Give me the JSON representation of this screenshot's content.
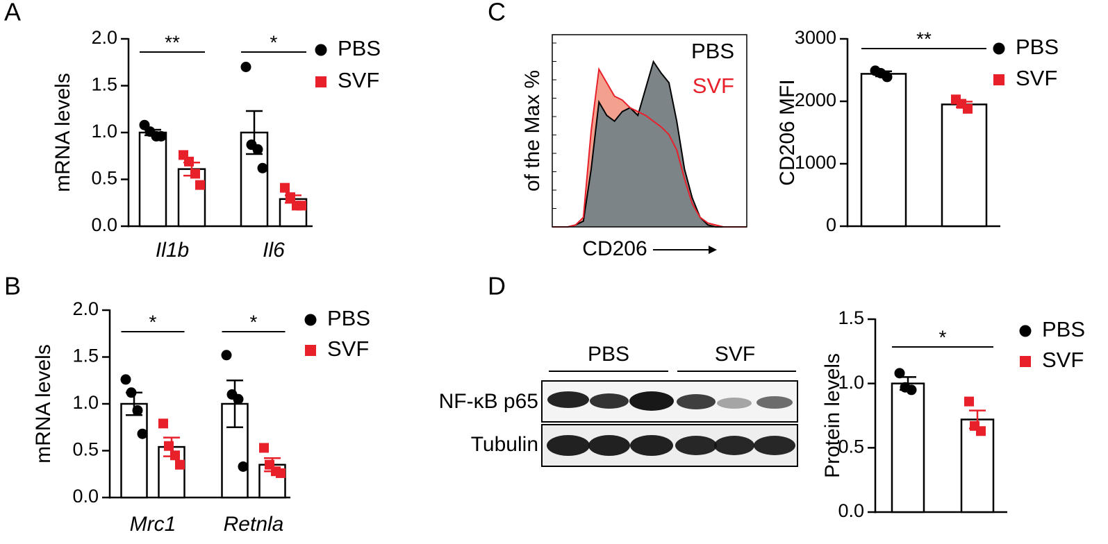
{
  "panel_labels": [
    "A",
    "B",
    "C",
    "D"
  ],
  "chart_data": [
    {
      "type": "bar_dot",
      "ylabel": "mRNA levels",
      "categories": [
        "Il1b",
        "Il6"
      ],
      "ylim": [
        0,
        2
      ],
      "yticks": [
        {
          "value": 0,
          "label": "0.0"
        },
        {
          "value": 0.5,
          "label": "0.5"
        },
        {
          "value": 1,
          "label": "1.0"
        },
        {
          "value": 1.5,
          "label": "1.5"
        },
        {
          "value": 2,
          "label": "2.0"
        }
      ],
      "annotations": [
        "**",
        "*"
      ],
      "series": [
        {
          "name": "PBS",
          "color": "#000000",
          "marker": "circle",
          "values": [
            1.0,
            1.0
          ],
          "errors": [
            0.03,
            0.23
          ],
          "points": [
            [
              1.08,
              1.01,
              0.96,
              0.96
            ],
            [
              1.7,
              0.87,
              0.82,
              0.62
            ]
          ]
        },
        {
          "name": "SVF",
          "color": "#e8202a",
          "marker": "square",
          "values": [
            0.61,
            0.29
          ],
          "errors": [
            0.07,
            0.04
          ],
          "points": [
            [
              0.76,
              0.69,
              0.56,
              0.44
            ],
            [
              0.41,
              0.31,
              0.22,
              0.22
            ]
          ]
        }
      ]
    },
    {
      "type": "bar_dot",
      "ylabel": "mRNA levels",
      "categories": [
        "Mrc1",
        "Retnla"
      ],
      "ylim": [
        0,
        2
      ],
      "yticks": [
        {
          "value": 0,
          "label": "0.0"
        },
        {
          "value": 0.5,
          "label": "0.5"
        },
        {
          "value": 1,
          "label": "1.0"
        },
        {
          "value": 1.5,
          "label": "1.5"
        },
        {
          "value": 2,
          "label": "2.0"
        }
      ],
      "annotations": [
        "*",
        "*"
      ],
      "series": [
        {
          "name": "PBS",
          "color": "#000000",
          "marker": "circle",
          "values": [
            1.0,
            1.0
          ],
          "errors": [
            0.12,
            0.25
          ],
          "points": [
            [
              1.26,
              1.12,
              0.93,
              0.68
            ],
            [
              1.52,
              1.1,
              1.05,
              0.33
            ]
          ]
        },
        {
          "name": "SVF",
          "color": "#e8202a",
          "marker": "square",
          "values": [
            0.54,
            0.35
          ],
          "errors": [
            0.1,
            0.07
          ],
          "points": [
            [
              0.79,
              0.55,
              0.45,
              0.35
            ],
            [
              0.53,
              0.35,
              0.28,
              0.26
            ]
          ]
        }
      ]
    },
    {
      "type": "area",
      "ylabel": "of the Max %",
      "xlabel": "CD206",
      "x": [
        0,
        1,
        2,
        3,
        4,
        5,
        6,
        7,
        8,
        9,
        10,
        11,
        12,
        13,
        14,
        15,
        16,
        17,
        18,
        19,
        20,
        21,
        22,
        23,
        24,
        25
      ],
      "xlim": [
        0,
        25
      ],
      "ylim": [
        0,
        100
      ],
      "series": [
        {
          "name": "PBS",
          "color": "#000000",
          "fill": "#7d8488",
          "values": [
            0,
            0,
            0,
            1,
            3,
            30,
            65,
            58,
            55,
            60,
            62,
            58,
            72,
            86,
            80,
            75,
            55,
            30,
            15,
            5,
            1,
            0,
            0,
            0,
            0,
            0
          ]
        },
        {
          "name": "SVF",
          "color": "#e8202a",
          "fill": "#f3a08f",
          "values": [
            0,
            0,
            0,
            1,
            5,
            50,
            82,
            75,
            68,
            66,
            62,
            60,
            58,
            55,
            52,
            48,
            40,
            25,
            12,
            5,
            2,
            1,
            0,
            0,
            0,
            0
          ]
        }
      ]
    },
    {
      "type": "bar_dot",
      "ylabel": "CD206 MFI",
      "ylim": [
        0,
        3000
      ],
      "yticks": [
        0,
        1000,
        2000,
        3000
      ],
      "annotations": [
        "**"
      ],
      "series": [
        {
          "name": "PBS",
          "color": "#000000",
          "marker": "circle",
          "values": [
            2440
          ],
          "errors": [
            40
          ],
          "points": [
            [
              2490,
              2450,
              2390
            ]
          ]
        },
        {
          "name": "SVF",
          "color": "#e8202a",
          "marker": "square",
          "values": [
            1950
          ],
          "errors": [
            45
          ],
          "points": [
            [
              2030,
              1960,
              1880
            ]
          ]
        }
      ]
    },
    {
      "type": "bar_dot",
      "ylabel": "Protein levels",
      "ylim": [
        0,
        1.5
      ],
      "yticks": [
        {
          "value": 0,
          "label": "0.0"
        },
        {
          "value": 0.5,
          "label": "0.5"
        },
        {
          "value": 1,
          "label": "1.0"
        },
        {
          "value": 1.5,
          "label": "1.5"
        }
      ],
      "annotations": [
        "*"
      ],
      "series": [
        {
          "name": "PBS",
          "color": "#000000",
          "marker": "circle",
          "values": [
            1.0
          ],
          "errors": [
            0.05
          ],
          "points": [
            [
              1.08,
              0.97,
              0.95
            ]
          ]
        },
        {
          "name": "SVF",
          "color": "#e8202a",
          "marker": "square",
          "values": [
            0.72
          ],
          "errors": [
            0.07
          ],
          "points": [
            [
              0.86,
              0.67,
              0.63
            ]
          ]
        }
      ]
    }
  ],
  "blot": {
    "groups": [
      "PBS",
      "SVF"
    ],
    "rows": [
      "NF-κB p65",
      "Tubulin"
    ]
  }
}
